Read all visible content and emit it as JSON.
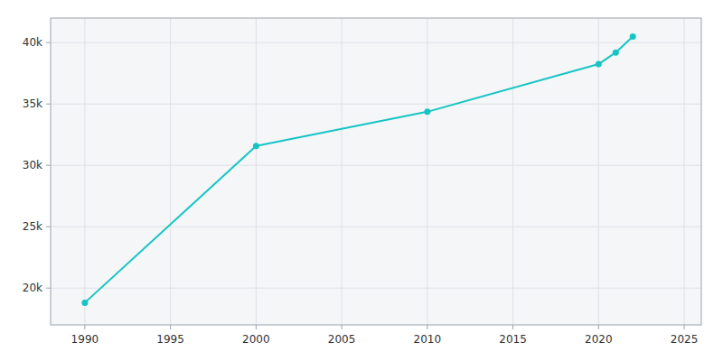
{
  "chart_data": {
    "type": "line",
    "x": [
      1990,
      2000,
      2010,
      2020,
      2021,
      2022
    ],
    "values": [
      18810,
      31580,
      34364,
      38244,
      39194,
      40491
    ],
    "color": "#17c4c4",
    "marker": "circle",
    "xlim": [
      1988,
      2026
    ],
    "ylim": [
      17000,
      42000
    ],
    "xticks": [
      1990,
      1995,
      2000,
      2005,
      2010,
      2015,
      2020,
      2025
    ],
    "yticks": [
      {
        "value": 20000,
        "label": "20k"
      },
      {
        "value": 25000,
        "label": "25k"
      },
      {
        "value": 30000,
        "label": "30k"
      },
      {
        "value": 35000,
        "label": "35k"
      },
      {
        "value": 40000,
        "label": "40k"
      }
    ],
    "grid": true
  }
}
